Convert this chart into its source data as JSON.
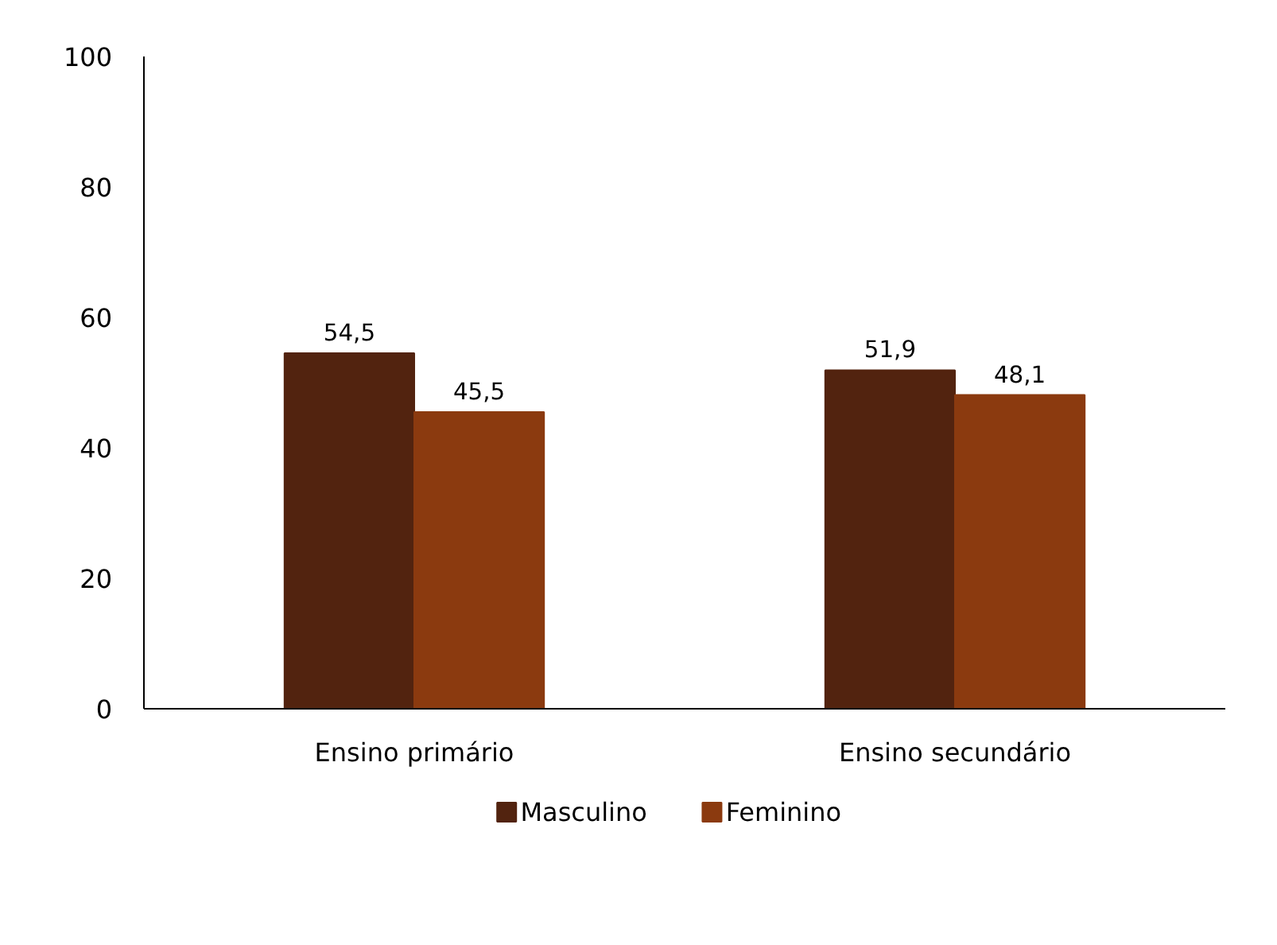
{
  "chart_data": {
    "type": "bar",
    "categories": [
      "Ensino primário",
      "Ensino secundário"
    ],
    "series": [
      {
        "name": "Masculino",
        "color": "#52230f",
        "values": [
          54.5,
          51.9
        ],
        "value_labels": [
          "54,5",
          "51,9"
        ]
      },
      {
        "name": "Feminino",
        "color": "#8b3a0f",
        "values": [
          45.5,
          48.1
        ],
        "value_labels": [
          "45,5",
          "48,1"
        ]
      }
    ],
    "ylim": [
      0,
      100
    ],
    "yticks": [
      0,
      20,
      40,
      60,
      80,
      100
    ],
    "grid": false,
    "legend": "bottom"
  }
}
